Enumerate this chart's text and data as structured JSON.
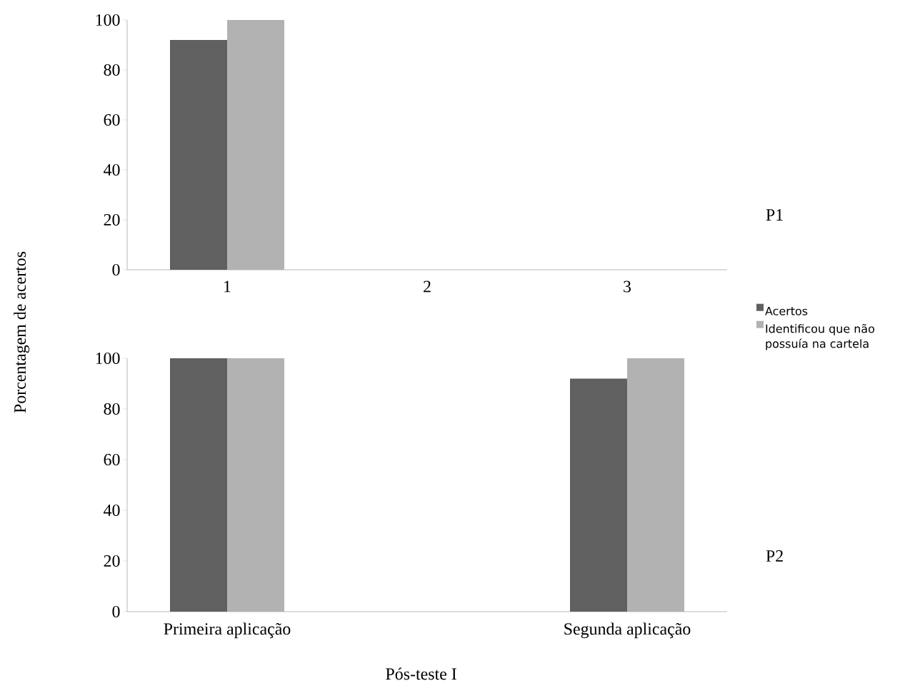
{
  "chart_data": [
    {
      "type": "bar",
      "ylabel": "Porcentagem de acertos",
      "categories": [
        "1",
        "2",
        "3"
      ],
      "series": [
        {
          "name": "Acertos",
          "color": "#606060",
          "values": [
            92,
            null,
            null
          ]
        },
        {
          "name": "Identificou que não possuía na cartela",
          "color": "#b2b2b2",
          "values": [
            100,
            null,
            null
          ]
        }
      ],
      "ylim": [
        0,
        100
      ],
      "yticks": [
        0,
        20,
        40,
        60,
        80,
        100
      ],
      "legend": "right",
      "annotations": [
        "P1"
      ]
    },
    {
      "type": "bar",
      "xlabel": "Pós-teste I",
      "categories": [
        "Primeira aplicação",
        null,
        "Segunda aplicação"
      ],
      "series": [
        {
          "color": "#606060",
          "values": [
            100,
            null,
            92
          ]
        },
        {
          "color": "#b2b2b2",
          "values": [
            100,
            null,
            100
          ]
        }
      ],
      "ylim": [
        0,
        100
      ],
      "yticks": [
        0,
        20,
        40,
        60,
        80,
        100
      ],
      "annotations": [
        "P2"
      ]
    }
  ]
}
